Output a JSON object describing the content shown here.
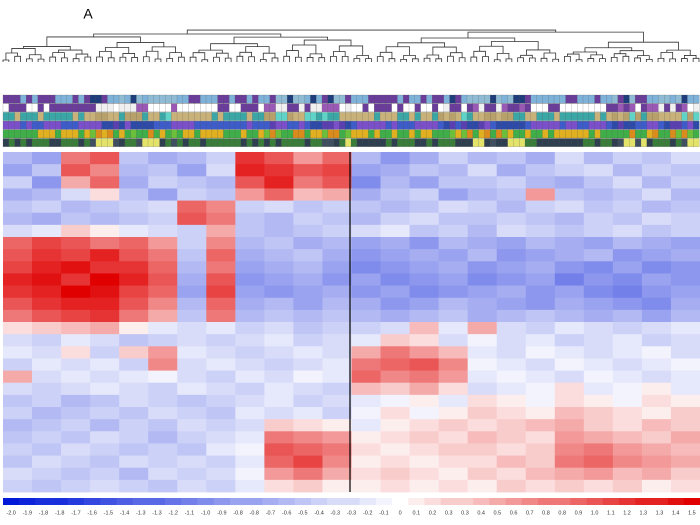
{
  "panel_label": "A",
  "chart_data": {
    "type": "heatmap",
    "zlim": [
      -2.0,
      1.5
    ],
    "colorscale": [
      "#0018d8",
      "#ffffff",
      "#e00000"
    ],
    "z": [
      [
        -0.6,
        -0.8,
        0.8,
        1.0,
        -0.5,
        -0.7,
        -0.6,
        -0.4,
        1.2,
        1.0,
        0.6,
        0.9,
        -0.6,
        -0.9,
        -0.7,
        -0.4,
        -0.6,
        -0.5,
        -0.7,
        -0.3,
        -0.6,
        -0.4,
        -0.5,
        -0.3
      ],
      [
        -0.8,
        -0.5,
        1.0,
        0.7,
        -0.6,
        -0.5,
        -0.8,
        -0.3,
        1.3,
        1.2,
        1.0,
        1.1,
        -0.8,
        -0.7,
        -0.5,
        -0.6,
        -0.3,
        -0.7,
        -0.5,
        -0.4,
        -0.3,
        -0.6,
        -0.4,
        -0.5
      ],
      [
        -0.4,
        -0.9,
        0.5,
        0.9,
        -0.7,
        -0.4,
        -0.5,
        -0.6,
        1.0,
        1.3,
        0.8,
        1.0,
        -1.0,
        -0.6,
        -0.8,
        -0.5,
        -0.5,
        -0.4,
        -0.6,
        -0.7,
        -0.5,
        -0.3,
        -0.6,
        -0.4
      ],
      [
        -0.7,
        -0.6,
        -0.3,
        0.2,
        -0.5,
        -0.8,
        -0.4,
        -0.5,
        0.6,
        0.9,
        0.4,
        0.5,
        -0.7,
        -0.5,
        -0.4,
        -0.8,
        -0.6,
        -0.5,
        0.6,
        -0.5,
        -0.6,
        -0.5,
        -0.3,
        -0.6
      ],
      [
        -0.5,
        -0.4,
        -0.6,
        -0.5,
        -0.4,
        -0.3,
        0.9,
        0.7,
        -0.4,
        -0.3,
        -0.5,
        -0.4,
        -0.5,
        -0.6,
        -0.5,
        -0.3,
        -0.4,
        -0.6,
        -0.4,
        -0.3,
        -0.5,
        -0.4,
        -0.6,
        -0.5
      ],
      [
        -0.6,
        -0.7,
        -0.5,
        -0.6,
        -0.5,
        -0.4,
        1.0,
        0.8,
        -0.5,
        -0.6,
        -0.4,
        -0.5,
        -0.6,
        -0.4,
        -0.3,
        -0.5,
        -0.5,
        -0.4,
        -0.5,
        -0.6,
        -0.4,
        -0.5,
        -0.3,
        -0.4
      ],
      [
        -0.3,
        -0.2,
        0.3,
        0.1,
        -0.2,
        -0.3,
        -0.4,
        0.5,
        -0.5,
        -0.6,
        -0.5,
        -0.4,
        -0.3,
        -0.2,
        -0.5,
        -0.4,
        -0.6,
        -0.3,
        -0.4,
        -0.5,
        -0.4,
        -0.3,
        -0.5,
        -0.4
      ],
      [
        0.9,
        1.1,
        1.0,
        0.8,
        0.9,
        0.6,
        -0.4,
        0.7,
        -0.6,
        -0.5,
        -0.7,
        -0.6,
        -0.8,
        -0.7,
        -0.9,
        -0.6,
        -0.7,
        -0.8,
        -0.6,
        -0.7,
        -0.8,
        -0.6,
        -0.7,
        -0.8
      ],
      [
        1.0,
        1.2,
        1.1,
        1.3,
        1.0,
        0.8,
        -0.5,
        0.9,
        -0.7,
        -0.6,
        -0.5,
        -0.7,
        -0.9,
        -0.8,
        -0.7,
        -0.8,
        -0.6,
        -0.9,
        -0.8,
        -0.7,
        -0.6,
        -0.9,
        -0.8,
        -0.7
      ],
      [
        1.1,
        1.3,
        1.4,
        1.2,
        1.2,
        0.9,
        -0.6,
        0.8,
        -0.8,
        -0.7,
        -0.6,
        -0.8,
        -1.0,
        -0.9,
        -0.8,
        -0.7,
        -0.9,
        -0.8,
        -0.7,
        -0.9,
        -1.0,
        -0.8,
        -1.0,
        -0.9
      ],
      [
        1.3,
        1.4,
        1.2,
        1.5,
        1.3,
        1.0,
        -0.7,
        1.0,
        -0.9,
        -0.8,
        -0.7,
        -0.9,
        -0.8,
        -1.0,
        -0.9,
        -0.8,
        -1.0,
        -0.9,
        -0.8,
        -1.1,
        -0.9,
        -1.0,
        -0.8,
        -0.9
      ],
      [
        1.2,
        1.3,
        1.5,
        1.4,
        1.1,
        0.9,
        -0.8,
        1.1,
        -0.8,
        -0.9,
        -0.8,
        -0.7,
        -0.9,
        -0.8,
        -1.0,
        -0.9,
        -0.8,
        -0.7,
        -0.9,
        -0.8,
        -1.0,
        -1.1,
        -0.9,
        -0.8
      ],
      [
        1.0,
        1.2,
        1.3,
        1.3,
        1.0,
        0.7,
        -0.6,
        0.9,
        -0.7,
        -0.6,
        -0.8,
        -0.6,
        -0.7,
        -0.9,
        -0.8,
        -0.6,
        -0.7,
        -0.8,
        -0.9,
        -0.7,
        -0.8,
        -0.9,
        -1.0,
        -0.7
      ],
      [
        0.8,
        1.0,
        1.1,
        1.2,
        0.8,
        0.5,
        -0.5,
        0.8,
        -0.6,
        -0.5,
        -0.6,
        -0.5,
        -0.6,
        -0.7,
        -0.6,
        -0.5,
        -0.7,
        -0.6,
        -0.5,
        -0.6,
        -0.7,
        -0.6,
        -0.8,
        -0.6
      ],
      [
        0.2,
        0.3,
        0.4,
        0.5,
        0.1,
        -0.2,
        -0.3,
        -0.2,
        -0.4,
        -0.3,
        -0.5,
        -0.4,
        -0.4,
        -0.3,
        0.4,
        -0.2,
        0.5,
        -0.3,
        -0.4,
        -0.2,
        -0.3,
        -0.4,
        -0.3,
        -0.2
      ],
      [
        -0.3,
        -0.4,
        -0.2,
        -0.3,
        -0.5,
        -0.4,
        -0.3,
        -0.4,
        -0.3,
        -0.2,
        -0.4,
        -0.3,
        -0.2,
        0.3,
        0.2,
        -0.3,
        -0.1,
        -0.3,
        -0.2,
        -0.4,
        -0.3,
        -0.2,
        -0.4,
        -0.3
      ],
      [
        -0.2,
        -0.3,
        0.2,
        -0.4,
        0.3,
        0.6,
        -0.2,
        -0.3,
        -0.4,
        -0.3,
        -0.2,
        -0.3,
        0.5,
        0.8,
        0.6,
        0.4,
        -0.2,
        -0.3,
        -0.1,
        -0.2,
        -0.3,
        -0.2,
        -0.1,
        -0.3
      ],
      [
        -0.4,
        -0.2,
        -0.3,
        -0.2,
        -0.4,
        0.7,
        -0.3,
        -0.2,
        -0.3,
        -0.4,
        -0.3,
        -0.2,
        0.8,
        0.9,
        1.0,
        0.7,
        -0.1,
        -0.2,
        -0.3,
        -0.1,
        -0.2,
        -0.3,
        -0.2,
        -0.1
      ],
      [
        0.5,
        -0.3,
        -0.2,
        -0.3,
        -0.2,
        -0.1,
        -0.3,
        -0.4,
        -0.2,
        -0.3,
        -0.1,
        -0.2,
        0.9,
        0.7,
        0.8,
        0.6,
        -0.2,
        -0.1,
        -0.2,
        -0.3,
        -0.1,
        -0.2,
        -0.3,
        -0.2
      ],
      [
        -0.3,
        -0.4,
        -0.3,
        -0.2,
        -0.3,
        -0.4,
        -0.2,
        -0.3,
        -0.4,
        -0.2,
        -0.3,
        -0.4,
        0.4,
        0.3,
        0.5,
        0.2,
        -0.3,
        -0.2,
        -0.1,
        0.2,
        -0.2,
        -0.1,
        0.1,
        -0.2
      ],
      [
        -0.5,
        -0.4,
        -0.6,
        -0.5,
        -0.3,
        -0.4,
        -0.5,
        -0.4,
        -0.3,
        -0.2,
        -0.4,
        -0.3,
        -0.2,
        -0.1,
        0.1,
        -0.2,
        0.2,
        0.1,
        -0.1,
        0.2,
        0.1,
        -0.1,
        0.2,
        0.1
      ],
      [
        -0.4,
        -0.6,
        -0.5,
        -0.4,
        -0.5,
        -0.3,
        -0.4,
        -0.5,
        -0.2,
        -0.3,
        -0.2,
        -0.4,
        -0.1,
        0.2,
        -0.1,
        0.1,
        0.3,
        0.2,
        0.1,
        0.4,
        0.3,
        0.2,
        0.1,
        0.3
      ],
      [
        -0.6,
        -0.5,
        -0.4,
        -0.6,
        -0.4,
        -0.5,
        -0.3,
        -0.4,
        -0.3,
        0.3,
        0.2,
        0.1,
        -0.2,
        0.1,
        0.2,
        0.3,
        0.2,
        0.3,
        0.4,
        0.5,
        0.3,
        0.2,
        0.4,
        0.3
      ],
      [
        -0.5,
        -0.4,
        -0.5,
        -0.3,
        -0.4,
        -0.6,
        -0.4,
        -0.3,
        -0.2,
        0.8,
        0.7,
        0.6,
        0.1,
        0.2,
        0.3,
        0.2,
        0.4,
        0.3,
        0.2,
        0.6,
        0.5,
        0.4,
        0.3,
        0.5
      ],
      [
        -0.4,
        -0.5,
        -0.3,
        -0.4,
        -0.5,
        -0.4,
        -0.5,
        -0.2,
        -0.1,
        1.0,
        0.9,
        0.8,
        0.2,
        0.1,
        0.2,
        0.3,
        0.3,
        0.2,
        0.3,
        0.7,
        0.8,
        0.6,
        0.5,
        0.4
      ],
      [
        -0.5,
        -0.3,
        -0.4,
        -0.5,
        -0.3,
        -0.4,
        -0.3,
        -0.4,
        -0.2,
        0.9,
        1.1,
        0.7,
        0.1,
        0.2,
        0.1,
        0.2,
        0.2,
        0.4,
        0.3,
        0.8,
        0.9,
        0.7,
        0.6,
        0.5
      ],
      [
        -0.3,
        -0.4,
        -0.5,
        -0.4,
        -0.6,
        -0.3,
        -0.4,
        -0.3,
        -0.1,
        0.6,
        0.8,
        0.5,
        0.2,
        0.3,
        0.2,
        0.1,
        0.3,
        0.2,
        0.4,
        0.5,
        0.6,
        0.4,
        0.5,
        0.3
      ],
      [
        -0.4,
        -0.5,
        -0.4,
        -0.3,
        -0.4,
        -0.5,
        -0.3,
        -0.4,
        -0.2,
        0.2,
        0.3,
        0.1,
        0.1,
        0.2,
        0.1,
        0.2,
        0.1,
        0.3,
        0.2,
        0.3,
        0.2,
        0.3,
        0.1,
        0.2
      ]
    ],
    "colorbar_ticks": [
      {
        "value": -2.0,
        "label": "-2.0"
      },
      {
        "value": -1.9,
        "label": "-1.9"
      },
      {
        "value": -1.8,
        "label": "-1.8"
      },
      {
        "value": -1.8,
        "label": "-1.8"
      },
      {
        "value": -1.7,
        "label": "-1.7"
      },
      {
        "value": -1.6,
        "label": "-1.6"
      },
      {
        "value": -1.5,
        "label": "-1.5"
      },
      {
        "value": -1.4,
        "label": "-1.4"
      },
      {
        "value": -1.3,
        "label": "-1.3"
      },
      {
        "value": -1.3,
        "label": "-1.3"
      },
      {
        "value": -1.2,
        "label": "-1.2"
      },
      {
        "value": -1.1,
        "label": "-1.1"
      },
      {
        "value": -1.0,
        "label": "-1.0"
      },
      {
        "value": -0.9,
        "label": "-0.9"
      },
      {
        "value": -0.8,
        "label": "-0.8"
      },
      {
        "value": -0.8,
        "label": "-0.8"
      },
      {
        "value": -0.7,
        "label": "-0.7"
      },
      {
        "value": -0.6,
        "label": "-0.6"
      },
      {
        "value": -0.5,
        "label": "-0.5"
      },
      {
        "value": -0.4,
        "label": "-0.4"
      },
      {
        "value": -0.3,
        "label": "-0.3"
      },
      {
        "value": -0.3,
        "label": "-0.3"
      },
      {
        "value": -0.2,
        "label": "-0.2"
      },
      {
        "value": -0.1,
        "label": "-0.1"
      },
      0,
      0.1,
      0.2,
      0.3,
      0.3,
      0.4,
      0.5,
      0.6,
      0.7,
      0.8,
      0.8,
      0.9,
      {
        "value": 1.0,
        "label": "1.0"
      },
      1.1,
      1.2,
      1.3,
      1.3,
      1.4,
      1.5
    ]
  }
}
